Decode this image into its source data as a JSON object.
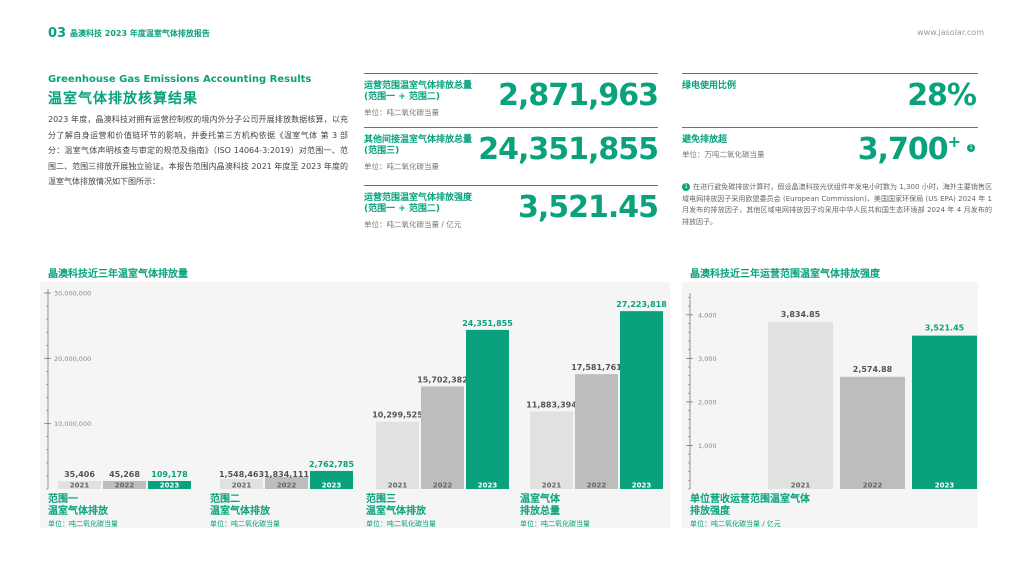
{
  "header": {
    "page_number": "03",
    "title": "晶澳科技 2023 年度温室气体排放报告",
    "url": "www.jasolar.com"
  },
  "section": {
    "title_en": "Greenhouse Gas Emissions Accounting Results",
    "title_zh": "温室气体排放核算结果",
    "intro": "2023 年度，晶澳科技对拥有运营控制权的境内外分子公司开展排放数据核算，以充分了解自身运营和价值链环节的影响，并委托第三方机构依据《温室气体 第 3 部分：温室气体声明核查与审定的规范及指南》（ISO 14064-3:2019）对范围一、范围二、范围三排放开展独立验证。本报告范围内晶澳科技 2021 年度至 2023 年度的温室气体排放情况如下图所示："
  },
  "kpis": {
    "scope12": {
      "label": "运营范围温室气体排放总量\n(范围一 + 范围二)",
      "unit": "单位：吨二氧化碳当量",
      "value": "2,871,963"
    },
    "scope3": {
      "label": "其他间接温室气体排放总量\n(范围三)",
      "unit": "单位：吨二氧化碳当量",
      "value": "24,351,855"
    },
    "intensity": {
      "label": "运营范围温室气体排放强度\n(范围一 + 范围二)",
      "unit": "单位：吨二氧化碳当量 / 亿元",
      "value": "3,521.45"
    },
    "green_power": {
      "label": "绿电使用比例",
      "value": "28%"
    },
    "avoided": {
      "label": "避免排放超",
      "unit": "单位：万吨二氧化碳当量",
      "value": "3,700",
      "suffix": "+"
    }
  },
  "note": {
    "mark": "1",
    "text": "在进行避免碳排放计算时，假设晶澳科技光伏组件年发电小时数为 1,300 小时，海外主要销售区域电网排放因子采用欧盟委员会 (European Commission)、美国国家环保局 (US EPA) 2024 年 1 月发布的排放因子，其他区域电网排放因子均采用中华人民共和国生态环境部 2024 年 4 月发布的排放因子。"
  },
  "colors": {
    "accent": "#0aa27d",
    "bar_2021": "#e0e2e0",
    "bar_2022": "#bcbebc",
    "bar_2023": "#0aa27d"
  },
  "chart_data": [
    {
      "type": "bar",
      "title": "晶澳科技近三年温室气体排放量",
      "ylim": [
        0,
        30000000
      ],
      "yticks": [
        "10,000,000",
        "20,000,000",
        "30,000,000"
      ],
      "years": [
        "2021",
        "2022",
        "2023"
      ],
      "groups": [
        {
          "name": "范围一\n温室气体排放",
          "unit": "单位：吨二氧化碳当量",
          "values": [
            35406,
            45268,
            109178
          ],
          "labels": [
            "35,406",
            "45,268",
            "109,178"
          ]
        },
        {
          "name": "范围二\n温室气体排放",
          "unit": "单位：吨二氧化碳当量",
          "values": [
            1548463,
            1834111,
            2762785
          ],
          "labels": [
            "1,548,463",
            "1,834,111",
            "2,762,785"
          ]
        },
        {
          "name": "范围三\n温室气体排放",
          "unit": "单位：吨二氧化碳当量",
          "values": [
            10299525,
            15702382,
            24351855
          ],
          "labels": [
            "10,299,525",
            "15,702,382",
            "24,351,855"
          ]
        },
        {
          "name": "温室气体\n排放总量",
          "unit": "单位：吨二氧化碳当量",
          "values": [
            11883394,
            17581761,
            27223818
          ],
          "labels": [
            "11,883,394",
            "17,581,761",
            "27,223,818"
          ]
        }
      ]
    },
    {
      "type": "bar",
      "title": "晶澳科技近三年运营范围温室气体排放强度",
      "ylim": [
        0,
        4500
      ],
      "yticks": [
        "1,000",
        "2,000",
        "3,000",
        "4,000"
      ],
      "categories": [
        "2021",
        "2022",
        "2023"
      ],
      "values": [
        3834.85,
        2574.88,
        3521.45
      ],
      "labels": [
        "3,834.85",
        "2,574.88",
        "3,521.45"
      ],
      "xlabel": "单位营收运营范围温室气体\n排放强度",
      "unit": "单位：吨二氧化碳当量 / 亿元"
    }
  ]
}
